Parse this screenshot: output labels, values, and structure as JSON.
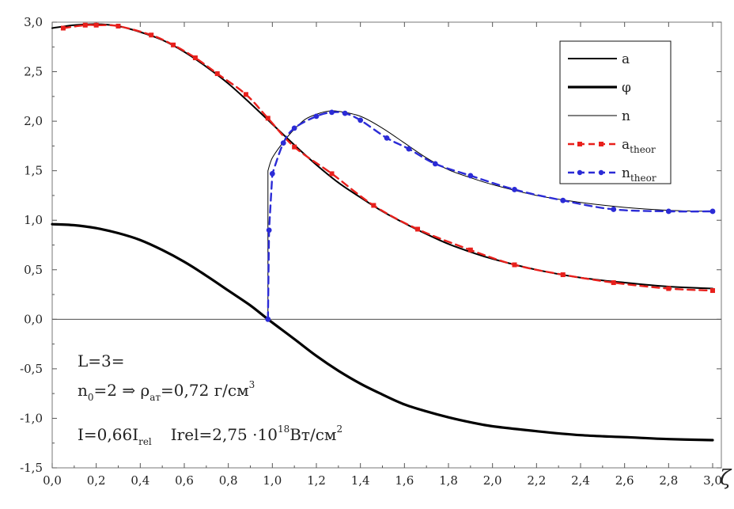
{
  "chart_data": {
    "type": "line",
    "title": "",
    "xlabel": "ζ",
    "ylabel": "",
    "xlim": [
      0.0,
      3.0
    ],
    "ylim": [
      -1.5,
      3.0
    ],
    "x_ticks": [
      "0,0",
      "0,2",
      "0,4",
      "0,6",
      "0,8",
      "1,0",
      "1,2",
      "1,4",
      "1,6",
      "1,8",
      "2,0",
      "2,2",
      "2,4",
      "2,6",
      "2,8",
      "3,0"
    ],
    "x_tick_values": [
      0.0,
      0.2,
      0.4,
      0.6,
      0.8,
      1.0,
      1.2,
      1.4,
      1.6,
      1.8,
      2.0,
      2.2,
      2.4,
      2.6,
      2.8,
      3.0
    ],
    "y_ticks": [
      "3,0",
      "2,5",
      "2,0",
      "1,5",
      "1,0",
      "0,5",
      "0,0",
      "-0,5",
      "-1,0",
      "-1,5"
    ],
    "y_tick_values": [
      3.0,
      2.5,
      2.0,
      1.5,
      1.0,
      0.5,
      0.0,
      -0.5,
      -1.0,
      -1.5
    ],
    "grid": false,
    "zero_line": true,
    "legend_position": "top-right",
    "series": [
      {
        "name": "a",
        "color": "#000000",
        "style": "solid",
        "weight": "medium",
        "points": [
          [
            0.0,
            2.94
          ],
          [
            0.1,
            2.97
          ],
          [
            0.2,
            2.98
          ],
          [
            0.3,
            2.96
          ],
          [
            0.4,
            2.9
          ],
          [
            0.5,
            2.82
          ],
          [
            0.6,
            2.7
          ],
          [
            0.7,
            2.55
          ],
          [
            0.8,
            2.38
          ],
          [
            0.9,
            2.18
          ],
          [
            1.0,
            1.97
          ],
          [
            1.1,
            1.76
          ],
          [
            1.2,
            1.56
          ],
          [
            1.3,
            1.38
          ],
          [
            1.4,
            1.23
          ],
          [
            1.5,
            1.09
          ],
          [
            1.6,
            0.97
          ],
          [
            1.7,
            0.86
          ],
          [
            1.8,
            0.76
          ],
          [
            1.9,
            0.68
          ],
          [
            2.0,
            0.61
          ],
          [
            2.2,
            0.5
          ],
          [
            2.4,
            0.42
          ],
          [
            2.6,
            0.37
          ],
          [
            2.8,
            0.33
          ],
          [
            3.0,
            0.31
          ]
        ]
      },
      {
        "name": "φ",
        "color": "#000000",
        "style": "solid",
        "weight": "thick",
        "points": [
          [
            0.0,
            0.96
          ],
          [
            0.1,
            0.95
          ],
          [
            0.2,
            0.92
          ],
          [
            0.3,
            0.87
          ],
          [
            0.4,
            0.8
          ],
          [
            0.5,
            0.7
          ],
          [
            0.6,
            0.58
          ],
          [
            0.7,
            0.44
          ],
          [
            0.8,
            0.29
          ],
          [
            0.9,
            0.14
          ],
          [
            0.98,
            0.0
          ],
          [
            1.1,
            -0.2
          ],
          [
            1.2,
            -0.37
          ],
          [
            1.3,
            -0.52
          ],
          [
            1.4,
            -0.65
          ],
          [
            1.5,
            -0.76
          ],
          [
            1.6,
            -0.86
          ],
          [
            1.7,
            -0.93
          ],
          [
            1.8,
            -0.99
          ],
          [
            1.9,
            -1.04
          ],
          [
            2.0,
            -1.08
          ],
          [
            2.2,
            -1.13
          ],
          [
            2.4,
            -1.17
          ],
          [
            2.6,
            -1.19
          ],
          [
            2.8,
            -1.21
          ],
          [
            3.0,
            -1.22
          ]
        ]
      },
      {
        "name": "n",
        "color": "#000000",
        "style": "solid",
        "weight": "thin",
        "points": [
          [
            0.98,
            0.0
          ],
          [
            0.98,
            1.5
          ],
          [
            1.0,
            1.63
          ],
          [
            1.05,
            1.79
          ],
          [
            1.1,
            1.92
          ],
          [
            1.15,
            2.02
          ],
          [
            1.2,
            2.07
          ],
          [
            1.25,
            2.1
          ],
          [
            1.3,
            2.1
          ],
          [
            1.4,
            2.05
          ],
          [
            1.5,
            1.93
          ],
          [
            1.6,
            1.78
          ],
          [
            1.7,
            1.63
          ],
          [
            1.8,
            1.51
          ],
          [
            1.9,
            1.43
          ],
          [
            2.0,
            1.36
          ],
          [
            2.2,
            1.25
          ],
          [
            2.4,
            1.18
          ],
          [
            2.6,
            1.13
          ],
          [
            2.8,
            1.1
          ],
          [
            3.0,
            1.09
          ]
        ]
      },
      {
        "name": "a_theor",
        "label_main": "a",
        "label_sub": "theor",
        "color": "#e8201c",
        "style": "dashed",
        "marker": "square",
        "points": [
          [
            0.05,
            2.94
          ],
          [
            0.15,
            2.97
          ],
          [
            0.2,
            2.97
          ],
          [
            0.3,
            2.96
          ],
          [
            0.45,
            2.87
          ],
          [
            0.55,
            2.77
          ],
          [
            0.65,
            2.64
          ],
          [
            0.75,
            2.48
          ],
          [
            0.88,
            2.27
          ],
          [
            0.98,
            2.03
          ],
          [
            1.1,
            1.74
          ],
          [
            1.27,
            1.47
          ],
          [
            1.46,
            1.15
          ],
          [
            1.66,
            0.91
          ],
          [
            1.9,
            0.7
          ],
          [
            2.1,
            0.55
          ],
          [
            2.32,
            0.45
          ],
          [
            2.55,
            0.37
          ],
          [
            2.8,
            0.31
          ],
          [
            3.0,
            0.29
          ]
        ]
      },
      {
        "name": "n_theor",
        "label_main": "n",
        "label_sub": "theor",
        "color": "#2b2bd6",
        "style": "dashed",
        "marker": "circle",
        "points": [
          [
            0.98,
            0.0
          ],
          [
            0.985,
            0.9
          ],
          [
            1.0,
            1.47
          ],
          [
            1.05,
            1.78
          ],
          [
            1.1,
            1.93
          ],
          [
            1.2,
            2.05
          ],
          [
            1.27,
            2.09
          ],
          [
            1.33,
            2.08
          ],
          [
            1.4,
            2.01
          ],
          [
            1.52,
            1.83
          ],
          [
            1.62,
            1.72
          ],
          [
            1.74,
            1.57
          ],
          [
            1.9,
            1.45
          ],
          [
            2.1,
            1.31
          ],
          [
            2.32,
            1.2
          ],
          [
            2.55,
            1.11
          ],
          [
            2.8,
            1.09
          ],
          [
            3.0,
            1.09
          ]
        ]
      }
    ],
    "annotations": {
      "line1": "L=3=",
      "line2": {
        "p1": "n",
        "p1_sub": "0",
        "p2": "=2 ⇒ ρ",
        "p2_sub": "ат",
        "p3": "=0,72 г/см",
        "p3_sup": "3"
      },
      "line3": {
        "p1": "I=0,66I",
        "p1_sub": "rel",
        "p2": "Irel=2,75 ·10",
        "p2_sup": "18",
        "p3": "Вт/см",
        "p3_sup": "2"
      }
    }
  }
}
